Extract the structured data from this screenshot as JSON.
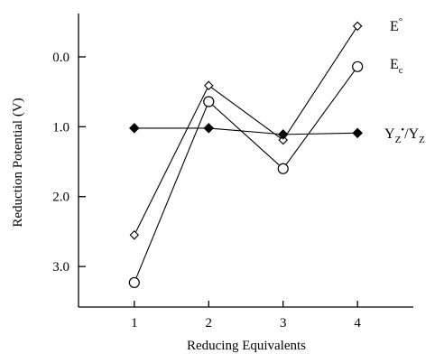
{
  "chart_data": {
    "type": "line",
    "title": "",
    "xlabel": "Reducing Equivalents",
    "ylabel": "Reduction Potential (V)",
    "x": [
      1,
      2,
      3,
      4
    ],
    "xticks": [
      "1",
      "2",
      "3",
      "4"
    ],
    "xlim": [
      0.25,
      4.75
    ],
    "yticks": [
      "0.0",
      "1.0",
      "2.0",
      "3.0"
    ],
    "ytick_values": [
      0.0,
      1.0,
      2.0,
      3.0
    ],
    "ylim": [
      -0.62,
      3.58
    ],
    "y_inverted": true,
    "grid": false,
    "series": [
      {
        "name": "E°",
        "marker": "open-diamond",
        "values": [
          2.55,
          0.41,
          1.19,
          -0.44
        ]
      },
      {
        "name": "Ec",
        "marker": "open-circle",
        "values": [
          3.23,
          0.64,
          1.6,
          0.14
        ]
      },
      {
        "name": "YZ•/YZ",
        "marker": "filled-diamond",
        "values": [
          1.02,
          1.02,
          1.11,
          1.09
        ]
      }
    ],
    "legend": "inline labels at right end of each series"
  }
}
